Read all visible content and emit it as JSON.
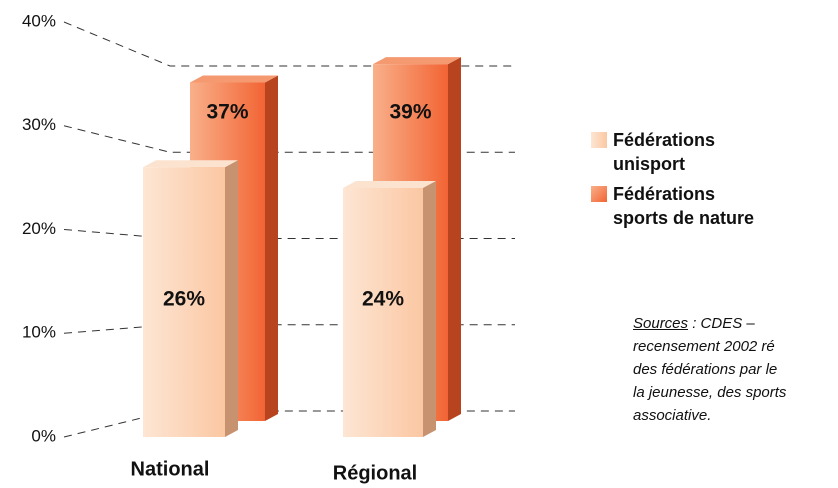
{
  "chart_data": {
    "type": "bar3d",
    "categories": [
      "National",
      "Régional"
    ],
    "series": [
      {
        "name": "Fédérations unisport",
        "color": "#fcd3b3",
        "values": [
          26,
          24
        ],
        "value_labels": [
          "26%",
          "24%"
        ]
      },
      {
        "name": "Fédérations sports de nature",
        "color": "#f47a48",
        "values": [
          37,
          39
        ],
        "value_labels": [
          "37%",
          "39%"
        ]
      }
    ],
    "ylim": [
      0,
      40
    ],
    "yticks": [
      {
        "value": 0,
        "label": "0%"
      },
      {
        "value": 10,
        "label": "10%"
      },
      {
        "value": 20,
        "label": "20%"
      },
      {
        "value": 30,
        "label": "30%"
      },
      {
        "value": 40,
        "label": "40%"
      }
    ],
    "grid": true,
    "source": {
      "label": "Sources",
      "lines": [
        " :  CDES  –",
        "recensement  2002  ré",
        "des fédérations par le",
        "la jeunesse, des sports",
        "associative."
      ]
    }
  }
}
